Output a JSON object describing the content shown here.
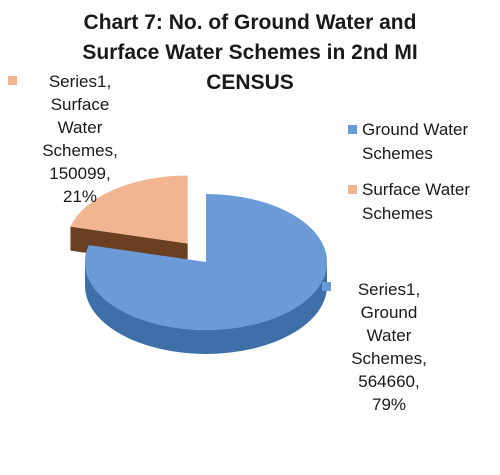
{
  "chart_data": {
    "type": "pie",
    "title_lines": [
      "Chart 7: No. of Ground Water and",
      "Surface Water Schemes in 2nd MI",
      "CENSUS"
    ],
    "categories": [
      "Ground Water Schemes",
      "Surface Water Schemes"
    ],
    "series": [
      {
        "name": "Series1",
        "values": [
          564660,
          150099
        ]
      }
    ],
    "percent_labels": [
      "79%",
      "21%"
    ],
    "data_labels": [
      [
        "Series1,",
        "Ground",
        "Water",
        "Schemes,",
        "564660,",
        "79%"
      ],
      [
        "Series1,",
        "Surface",
        "Water",
        "Schemes,",
        "150099,",
        "21%"
      ]
    ],
    "legend": {
      "position": "right",
      "entries": [
        "Ground Water",
        "Schemes",
        "Surface Water",
        "Schemes"
      ]
    },
    "style": "3d-pie",
    "exploded_slice": "Surface Water Schemes",
    "colors": {
      "ground_top": "#6a9bd6",
      "ground_side": "#3f6fa8",
      "surface_top": "#f2b592",
      "surface_side": "#6b3f22"
    }
  }
}
